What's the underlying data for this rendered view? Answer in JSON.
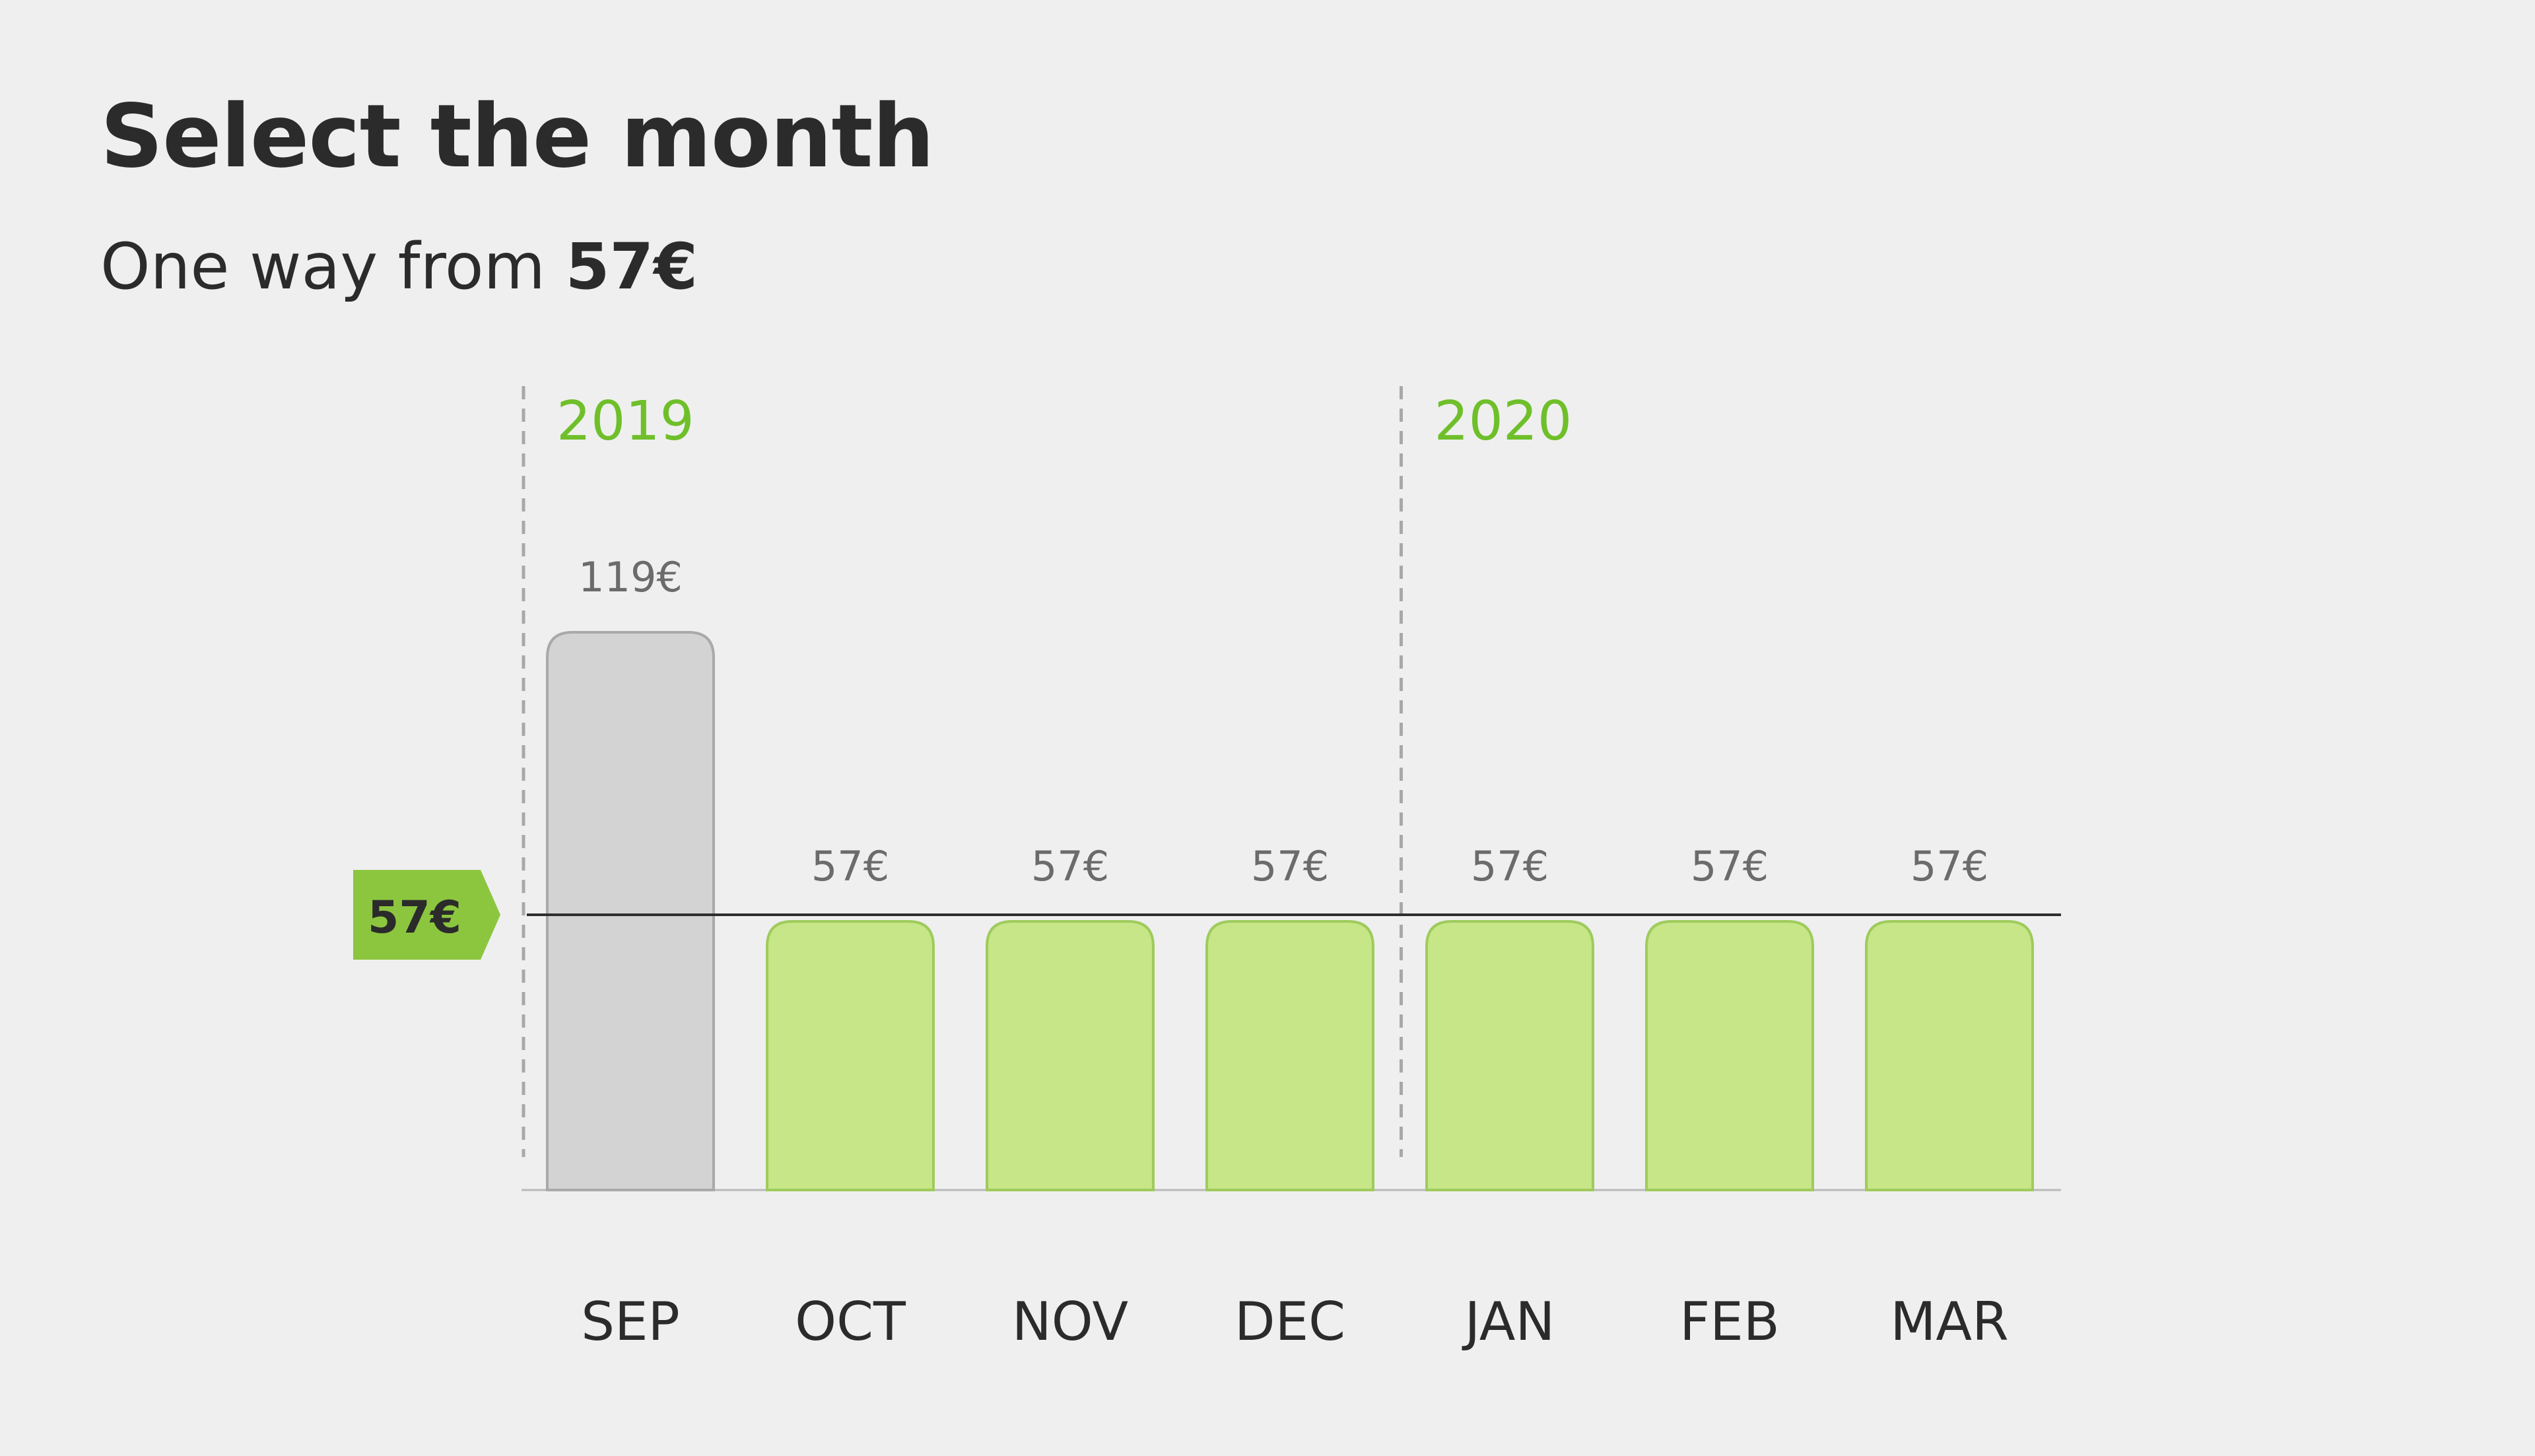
{
  "header": {
    "title": "Select the month",
    "subtitle_prefix": "One way from ",
    "subtitle_price": "57€"
  },
  "colors": {
    "background": "#efefef",
    "bar_cheapest": "#c6e687",
    "bar_cheapest_stroke": "#9fcb5c",
    "bar_other": "#d3d3d3",
    "bar_other_stroke": "#a9a9a9",
    "accent_green": "#6fbf2a",
    "badge_green": "#8cc63f",
    "text_dark": "#2b2b2b",
    "value_label": "#6b6b6b"
  },
  "chart_data": {
    "type": "bar",
    "categories": [
      "SEP",
      "OCT",
      "NOV",
      "DEC",
      "JAN",
      "FEB",
      "MAR"
    ],
    "values": [
      119,
      57,
      57,
      57,
      57,
      57,
      57
    ],
    "value_labels": [
      "119€",
      "57€",
      "57€",
      "57€",
      "57€",
      "57€",
      "57€"
    ],
    "years": [
      {
        "label": "2019",
        "starts_at": "SEP"
      },
      {
        "label": "2020",
        "starts_at": "JAN"
      }
    ],
    "reference_line": {
      "value": 57,
      "label": "57€"
    },
    "ylim": [
      0,
      119
    ],
    "grid": false,
    "legend": "none"
  }
}
